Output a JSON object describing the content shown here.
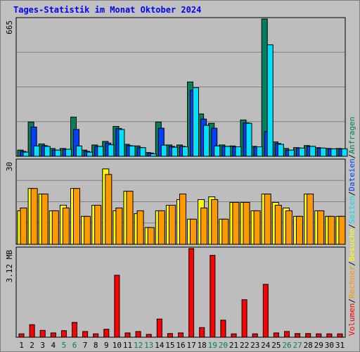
{
  "title": "Tages-Statistik im Monat Oktober 2024",
  "colors": {
    "background": "#c0c0c0",
    "plot_background": "#bdbdbd",
    "grid": "#808080",
    "title": "#0000ff",
    "hits": "#00805c",
    "files": "#0040ff",
    "pages": "#00e0ff",
    "visits": "#ffff00",
    "sites": "#ff9900",
    "kbytes": "#ff0000",
    "weekend_label": "#00805c",
    "weekday_label": "#000000"
  },
  "chart_data": [
    {
      "type": "bar",
      "panel": "top",
      "y_axis_label": "665",
      "ylim": [
        0,
        665
      ],
      "grid": true,
      "categories": [
        "1",
        "2",
        "3",
        "4",
        "5",
        "6",
        "7",
        "8",
        "9",
        "10",
        "11",
        "12",
        "13",
        "14",
        "15",
        "16",
        "17",
        "18",
        "19",
        "20",
        "21",
        "22",
        "23",
        "24",
        "25",
        "26",
        "27",
        "28",
        "29",
        "30",
        "31"
      ],
      "series": [
        {
          "name": "Anfragen",
          "color_key": "hits",
          "values": [
            30,
            166,
            60,
            38,
            38,
            190,
            30,
            55,
            72,
            145,
            58,
            50,
            18,
            166,
            55,
            55,
            360,
            205,
            160,
            55,
            50,
            176,
            48,
            665,
            70,
            38,
            42,
            52,
            42,
            38,
            38
          ]
        },
        {
          "name": "Dateien",
          "color_key": "files",
          "values": [
            24,
            142,
            52,
            30,
            34,
            130,
            24,
            48,
            64,
            135,
            52,
            42,
            16,
            136,
            48,
            48,
            320,
            180,
            136,
            48,
            46,
            162,
            46,
            120,
            62,
            30,
            40,
            48,
            40,
            36,
            36
          ]
        },
        {
          "name": "Seiten",
          "color_key": "pages",
          "values": [
            20,
            50,
            48,
            30,
            34,
            50,
            20,
            48,
            56,
            130,
            50,
            42,
            12,
            54,
            44,
            46,
            332,
            150,
            50,
            48,
            46,
            160,
            46,
            540,
            58,
            30,
            40,
            48,
            40,
            36,
            36
          ]
        }
      ],
      "legend_vertical": [
        "Anfragen",
        "/",
        "Dateien",
        "/",
        "Seiten",
        "/",
        "Besuche",
        "/",
        "Rechner",
        "/",
        "Volumen"
      ]
    },
    {
      "type": "bar",
      "panel": "middle",
      "y_axis_label": "30",
      "ylim": [
        0,
        30
      ],
      "grid": true,
      "categories": [
        "1",
        "2",
        "3",
        "4",
        "5",
        "6",
        "7",
        "8",
        "9",
        "10",
        "11",
        "12",
        "13",
        "14",
        "15",
        "16",
        "17",
        "18",
        "19",
        "20",
        "21",
        "22",
        "23",
        "24",
        "25",
        "26",
        "27",
        "28",
        "29",
        "30",
        "31"
      ],
      "series": [
        {
          "name": "Besuche",
          "color_key": "visits",
          "values": [
            12,
            20,
            18,
            12,
            14,
            20,
            10,
            14,
            27,
            12,
            19,
            11,
            6,
            12,
            14,
            16,
            9,
            16,
            17,
            9,
            15,
            15,
            12,
            18,
            15,
            13,
            10,
            18,
            12,
            10,
            10
          ]
        },
        {
          "name": "Rechner",
          "color_key": "sites",
          "values": [
            13,
            20,
            18,
            12,
            13,
            20,
            10,
            14,
            25,
            13,
            19,
            12,
            6,
            12,
            14,
            18,
            9,
            13,
            16,
            9,
            15,
            15,
            12,
            18,
            14,
            12,
            10,
            18,
            12,
            10,
            10
          ]
        }
      ]
    },
    {
      "type": "bar",
      "panel": "bottom",
      "y_axis_label": "3.12 MB",
      "ylim": [
        0,
        3.12
      ],
      "grid": false,
      "categories": [
        "1",
        "2",
        "3",
        "4",
        "5",
        "6",
        "7",
        "8",
        "9",
        "10",
        "11",
        "12",
        "13",
        "14",
        "15",
        "16",
        "17",
        "18",
        "19",
        "20",
        "21",
        "22",
        "23",
        "24",
        "25",
        "26",
        "27",
        "28",
        "29",
        "30",
        "31"
      ],
      "series": [
        {
          "name": "Volumen",
          "color_key": "kbytes",
          "values": [
            0.12,
            0.44,
            0.24,
            0.15,
            0.23,
            0.52,
            0.2,
            0.12,
            0.28,
            2.18,
            0.15,
            0.2,
            0.1,
            0.64,
            0.13,
            0.15,
            3.12,
            0.34,
            2.88,
            0.6,
            0.12,
            1.32,
            0.12,
            1.86,
            0.15,
            0.2,
            0.13,
            0.13,
            0.12,
            0.12,
            0.12
          ]
        }
      ]
    }
  ],
  "weekend_days": [
    5,
    6,
    12,
    13,
    19,
    20,
    26,
    27
  ]
}
